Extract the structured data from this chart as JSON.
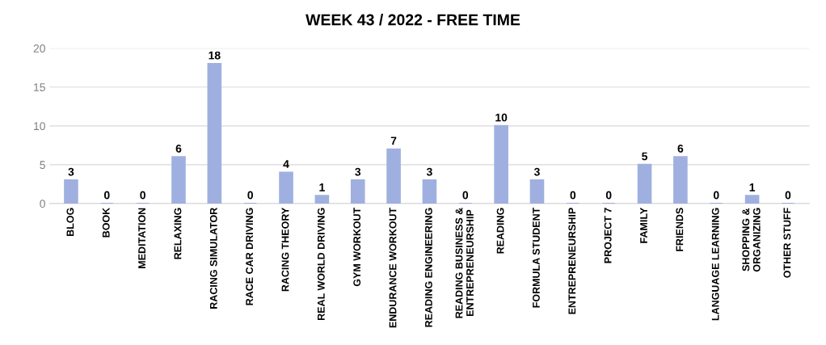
{
  "chart_data": {
    "type": "bar",
    "title": "WEEK 43 / 2022 - FREE TIME",
    "categories": [
      "BLOG",
      "BOOK",
      "MEDITATION",
      "RELAXING",
      "RACING SIMULATOR",
      "RACE CAR DRIVING",
      "RACING THEORY",
      "REAL WORLD DRIVING",
      "GYM WORKOUT",
      "ENDURANCE WORKOUT",
      "READING ENGINEERING",
      "READING BUSINESS &\nENTREPRENEURSHIP",
      "READING",
      "FORMULA STUDENT",
      "ENTREPRENEURSHIP",
      "PROJECT 7",
      "FAMILY",
      "FRIENDS",
      "LANGUAGE LEARNING",
      "SHOPPING &\nORGANIZING",
      "OTHER STUFF"
    ],
    "values": [
      3,
      0,
      0,
      6,
      18,
      0,
      4,
      1,
      3,
      7,
      3,
      0,
      10,
      3,
      0,
      0,
      5,
      6,
      0,
      1,
      0
    ],
    "color": "#9fb0e0",
    "ylim": [
      0,
      20
    ],
    "yticks": [
      0,
      5,
      10,
      15,
      20
    ],
    "grid": "y",
    "data_labels": true
  }
}
